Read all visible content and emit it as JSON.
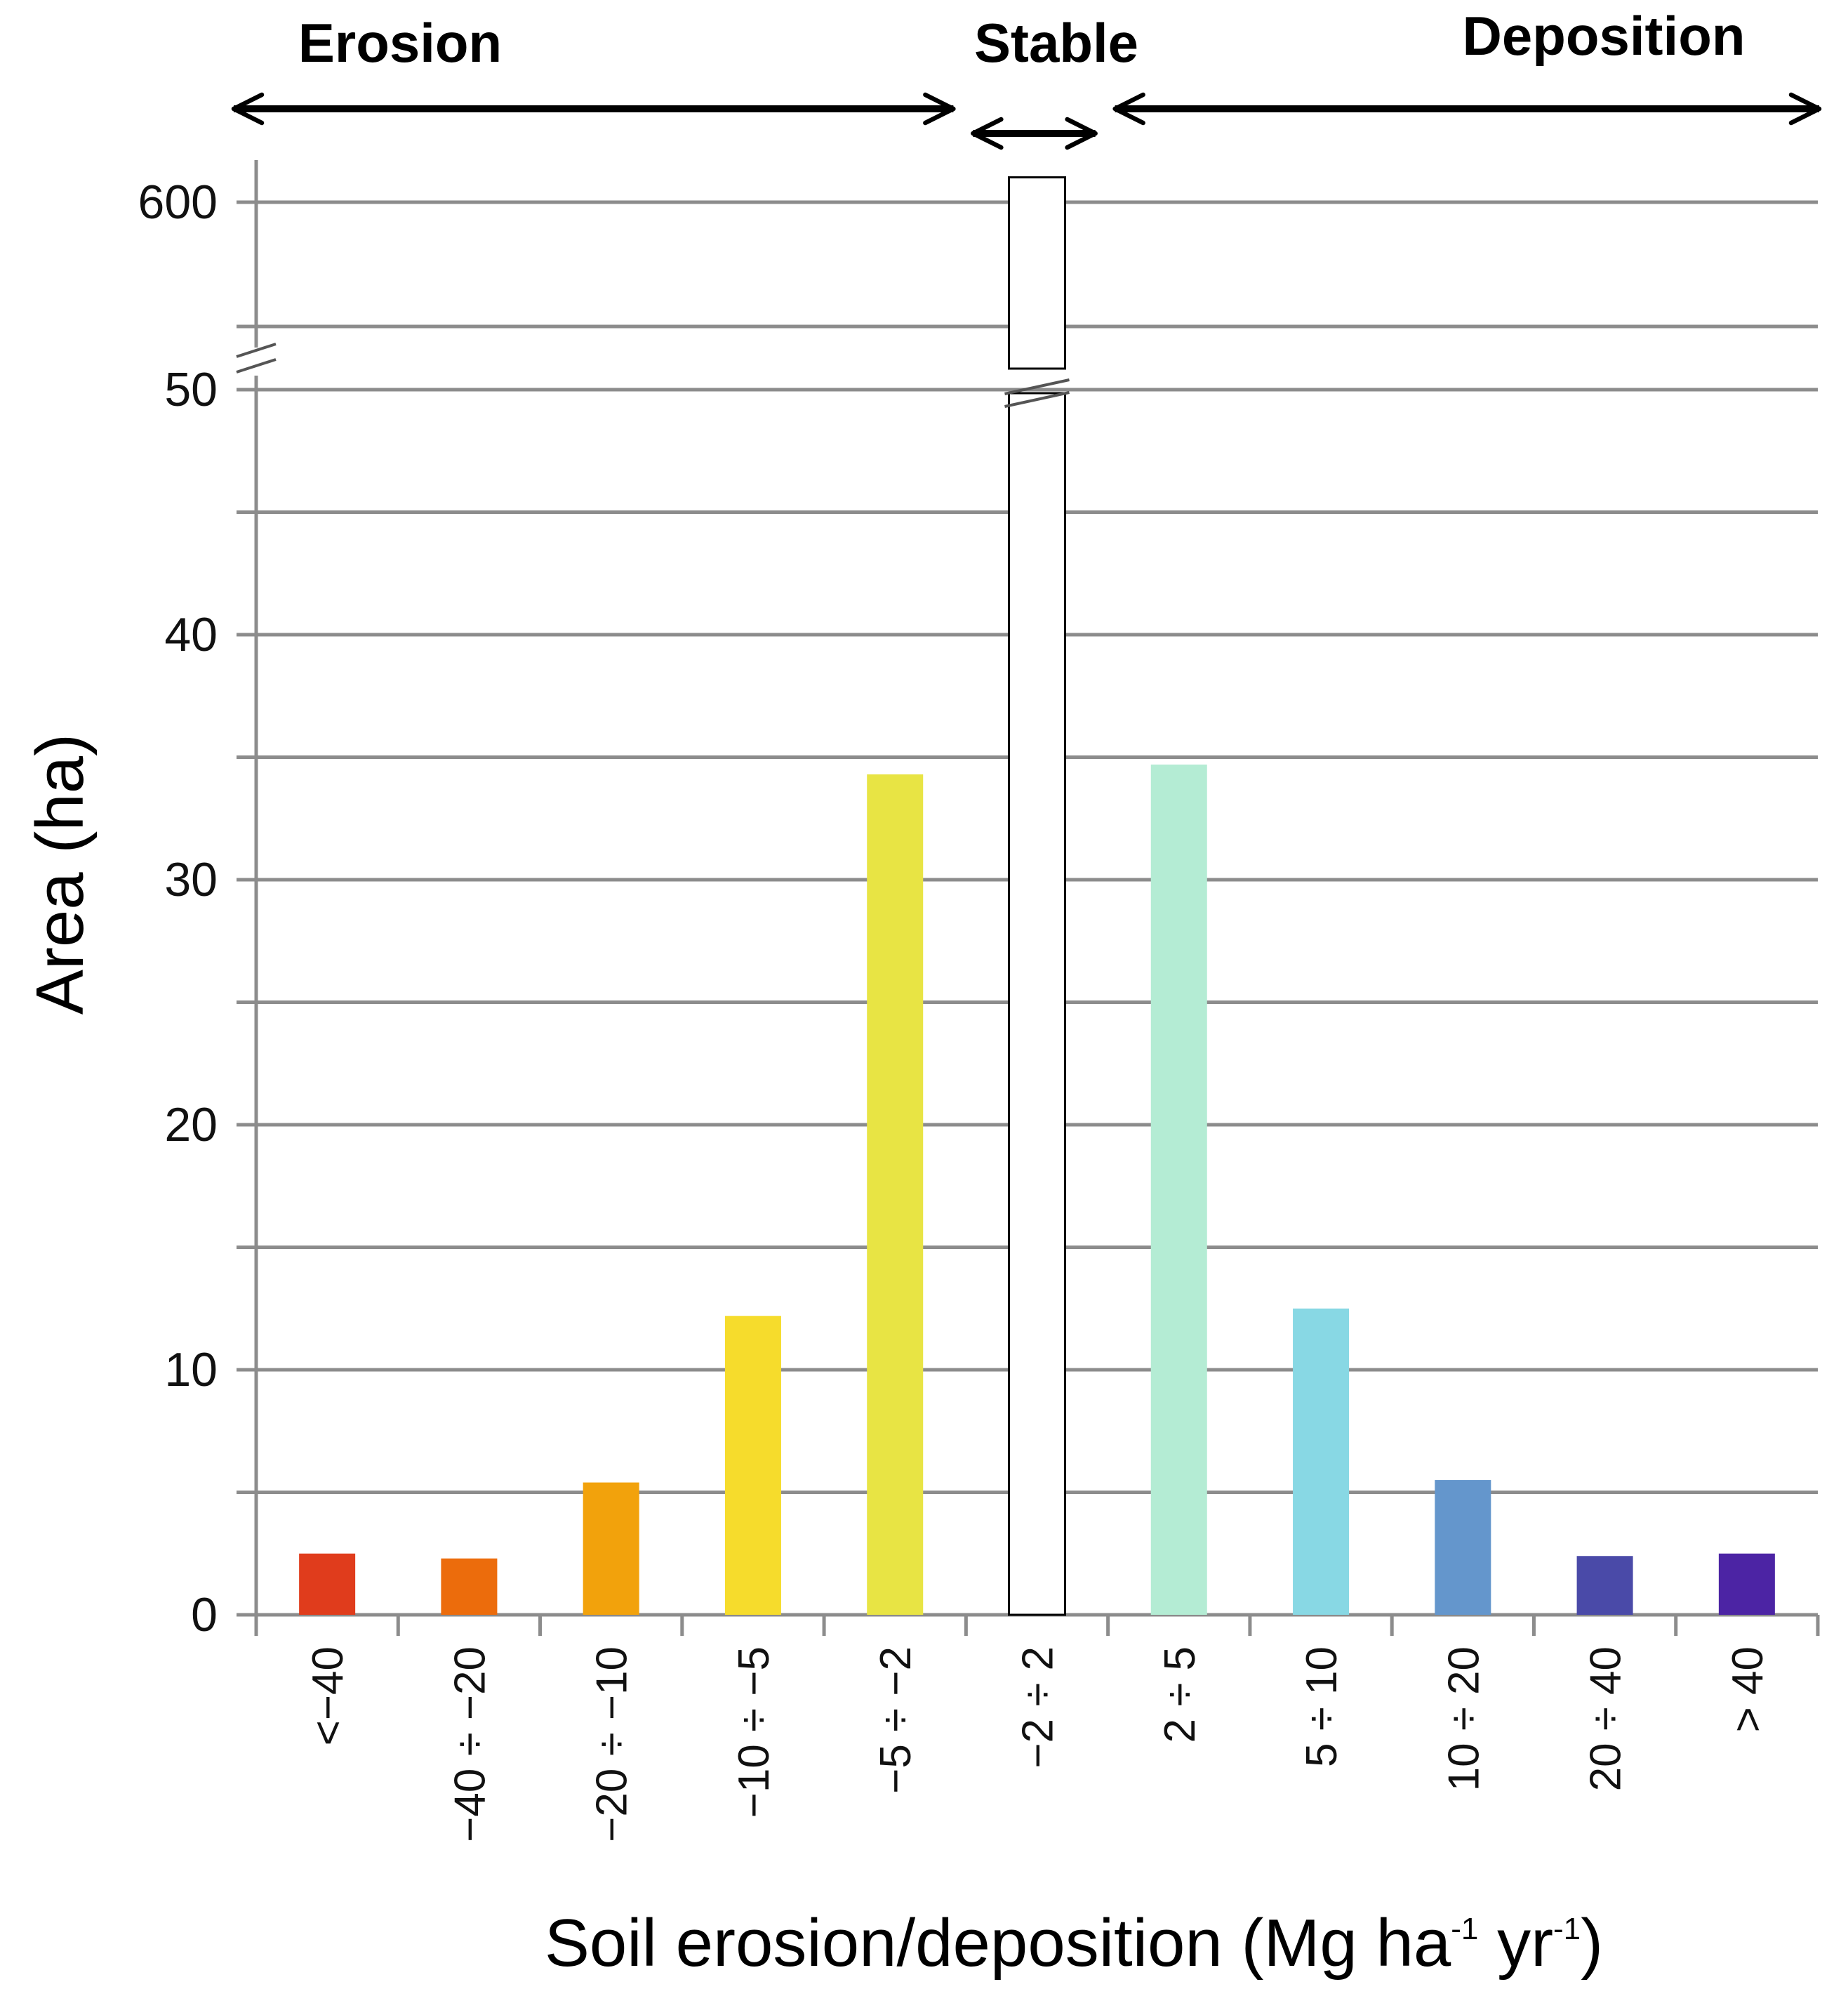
{
  "chart_data": {
    "type": "bar",
    "title": "",
    "xlabel": {
      "main": "Soil erosion/deposition (Mg ha",
      "exp1": "-1",
      "mid": " yr",
      "exp2": "-1",
      "end": ")"
    },
    "ylabel": "Area (ha)",
    "categories": [
      "<−40",
      "−40 ÷ −20",
      "−20 ÷ −10",
      "−10 ÷ −5",
      "−5 ÷ −2",
      "−2 ÷ 2",
      "2 ÷ 5",
      "5 ÷ 10",
      "10 ÷ 20",
      "20 ÷ 40",
      "> 40"
    ],
    "values": [
      2.5,
      2.3,
      5.4,
      12.2,
      34.3,
      610,
      34.7,
      12.5,
      5.5,
      2.4,
      2.5
    ],
    "colors": [
      "#e03c1c",
      "#ec6c0c",
      "#f2a20c",
      "#f6dc2c",
      "#e8e444",
      "#ffffff",
      "#b4ecd4",
      "#88d8e4",
      "#6496cc",
      "#4a4aa8",
      "#4c24a4"
    ],
    "broken_y_axis": true,
    "ylim_lower": [
      0,
      50
    ],
    "ylim_upper": [
      550,
      600
    ],
    "yticks_lower": [
      "0",
      "10",
      "20",
      "30",
      "40",
      "50"
    ],
    "yticks_upper": [
      "600"
    ],
    "grid": true,
    "regions": [
      {
        "label": "Erosion",
        "from_category": 0,
        "to_category": 4
      },
      {
        "label": "Stable",
        "from_category": 5,
        "to_category": 5
      },
      {
        "label": "Deposition",
        "from_category": 6,
        "to_category": 10
      }
    ]
  }
}
